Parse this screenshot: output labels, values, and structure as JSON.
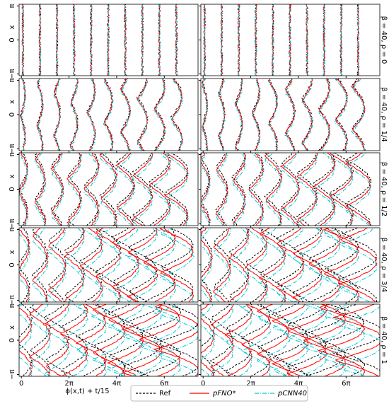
{
  "chart_data": {
    "type": "line",
    "xlabel": "ϕ(x,t) + t/15",
    "ylabel": "x",
    "xlim": [
      -0.3,
      23.3
    ],
    "xticks": [
      {
        "value": 0,
        "label": "0"
      },
      {
        "value": 6.2832,
        "label": "2π"
      },
      {
        "value": 12.5664,
        "label": "4π"
      },
      {
        "value": 18.8496,
        "label": "6π"
      }
    ],
    "ylim": [
      -3.3,
      3.3
    ],
    "yticks": [
      {
        "value": -3.1416,
        "label": "−π"
      },
      {
        "value": 0,
        "label": "0"
      },
      {
        "value": 3.1416,
        "label": "π"
      }
    ],
    "rows": [
      "β = 40, ρ = 0",
      "β = 40, ρ = 1/4",
      "β = 40, ρ = 1/2",
      "β = 40, ρ = 3/4",
      "β = 40, ρ = 1"
    ],
    "series": [
      {
        "name": "Ref",
        "color": "#000000",
        "dash": "3,2"
      },
      {
        "name": "pFNO*",
        "color": "#ff0000",
        "dash": "none"
      },
      {
        "name": "pCNN40",
        "color": "#00c8d2",
        "dash": "6,2,1,2"
      }
    ]
  }
}
